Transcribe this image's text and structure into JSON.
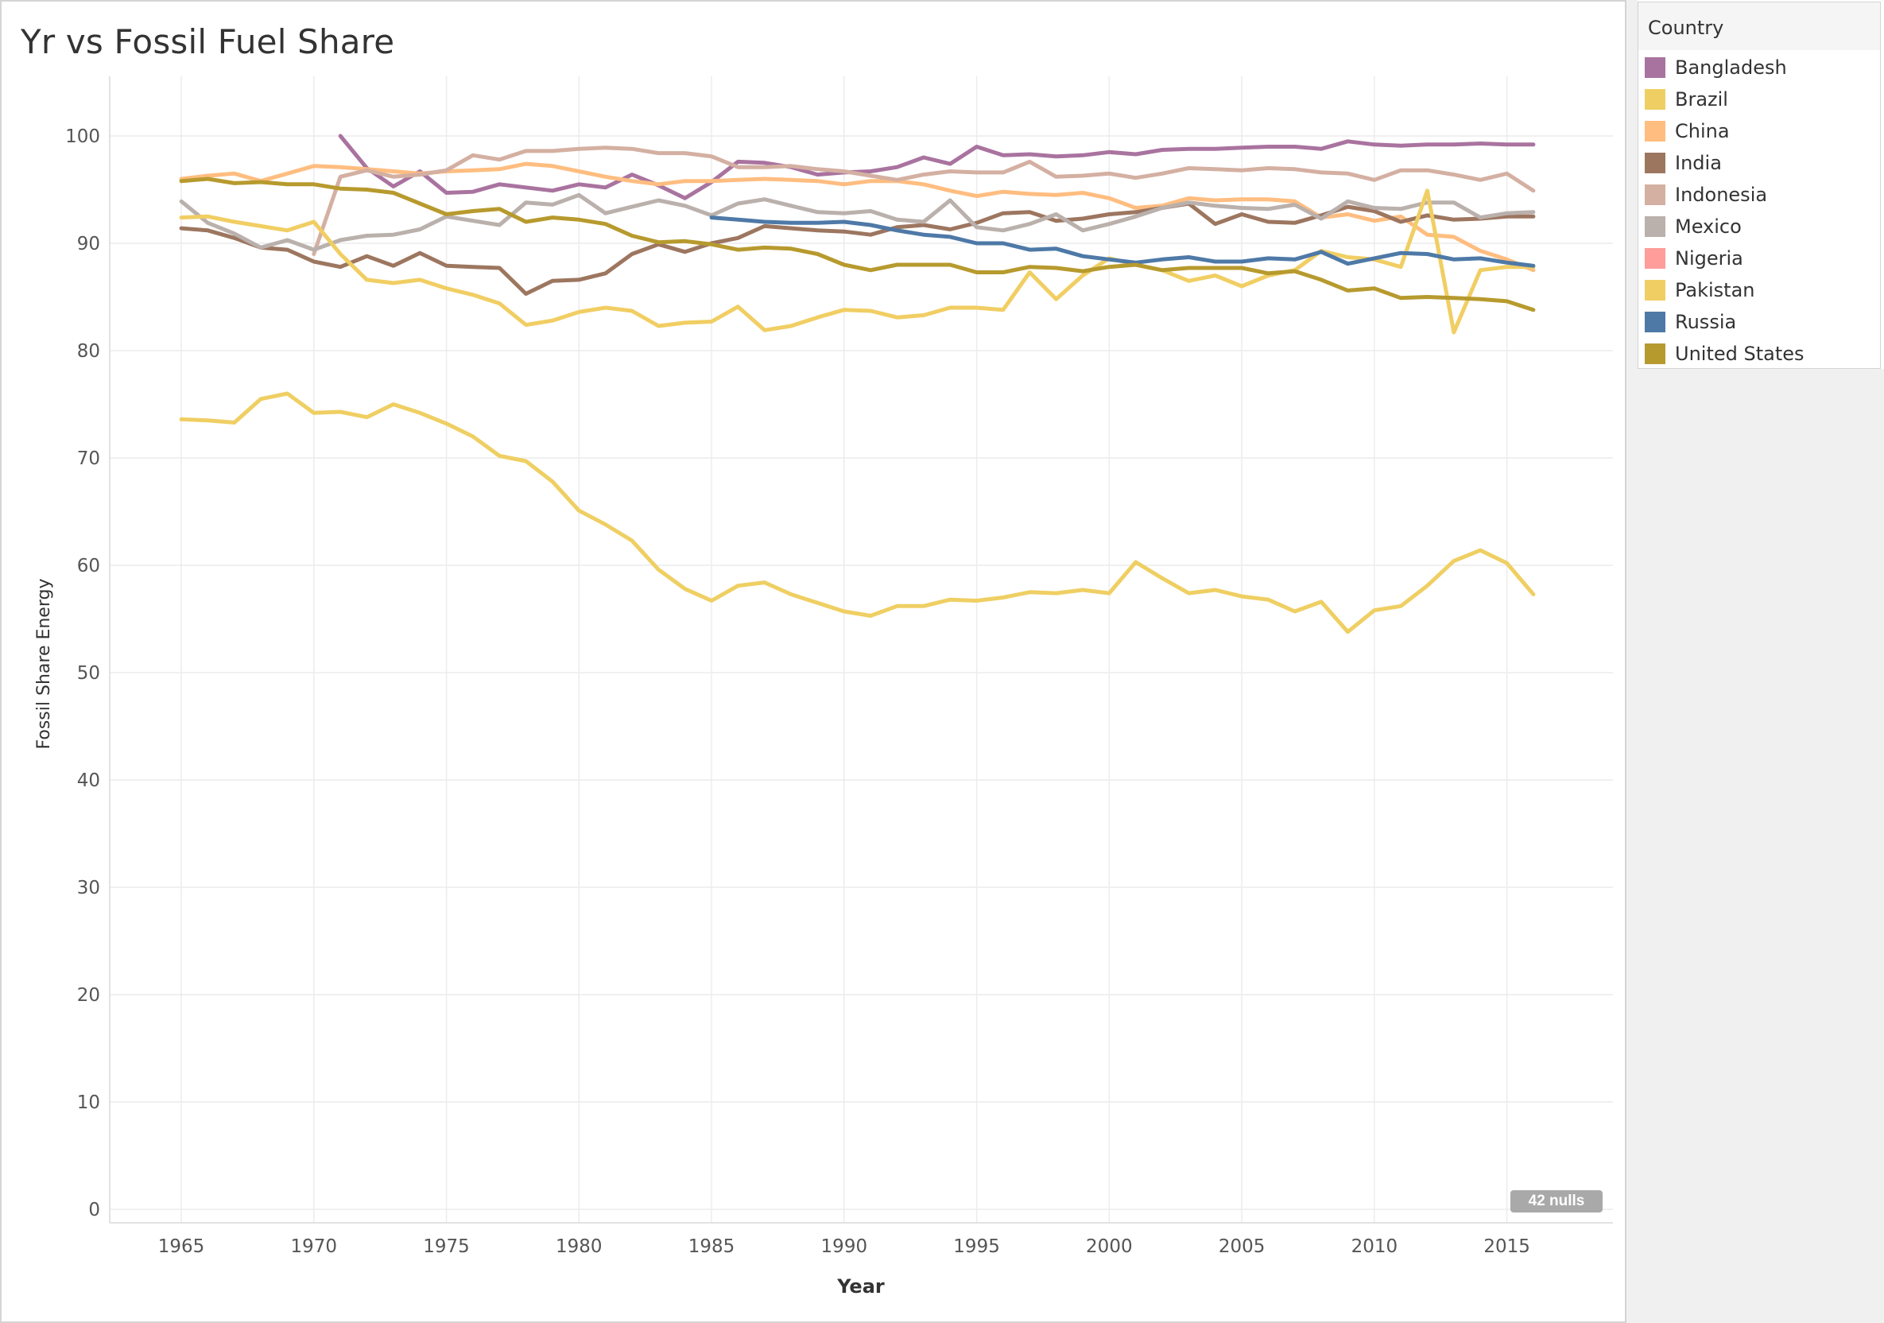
{
  "chart_data": {
    "type": "line",
    "title": "Yr vs Fossil Fuel Share",
    "xlabel": "Year",
    "ylabel": "Fossil Share Energy",
    "xlim": [
      1962,
      1019.0
    ],
    "ylim": [
      0,
      105
    ],
    "x_ticks": [
      "1965",
      "1970",
      "1975",
      "1980",
      "1985",
      "1990",
      "1995",
      "2000",
      "2005",
      "2010",
      "2015"
    ],
    "y_ticks": [
      "0",
      "10",
      "20",
      "30",
      "40",
      "50",
      "60",
      "70",
      "80",
      "90",
      "100"
    ],
    "grid": true,
    "legend_placement": "right",
    "legend_title": "Country",
    "nulls_label": "42 nulls",
    "series": [
      {
        "name": "Bangladesh",
        "color": "#a9739f",
        "start_year": 1971,
        "values": [
          100,
          97,
          95.3,
          96.7,
          94.7,
          94.8,
          95.5,
          95.2,
          94.9,
          95.5,
          95.2,
          96.4,
          95.4,
          94.2,
          95.7,
          97.6,
          97.5,
          97.1,
          96.4,
          96.6,
          96.7,
          97.1,
          98.0,
          97.4,
          99.0,
          98.2,
          98.3,
          98.1,
          98.2,
          98.5,
          98.3,
          98.7,
          98.8,
          98.8,
          98.9,
          99.0,
          99.0,
          98.8,
          99.5,
          99.2,
          99.1,
          99.2,
          99.2,
          99.3,
          99.2,
          99.2
        ]
      },
      {
        "name": "Brazil",
        "color": "#efcf63",
        "start_year": 1965,
        "values": [
          73.6,
          73.5,
          73.3,
          75.5,
          76.0,
          74.2,
          74.3,
          73.8,
          75.0,
          74.2,
          73.2,
          72.0,
          70.2,
          69.7,
          67.8,
          65.1,
          63.8,
          62.3,
          59.6,
          57.8,
          56.7,
          58.1,
          58.4,
          57.3,
          56.5,
          55.7,
          55.3,
          56.2,
          56.2,
          56.8,
          56.7,
          57.0,
          57.5,
          57.4,
          57.7,
          57.4,
          60.3,
          58.8,
          57.4,
          57.7,
          57.1,
          56.8,
          55.7,
          56.6,
          53.8,
          55.8,
          56.2,
          58.1,
          60.4,
          61.4,
          60.2,
          57.3
        ]
      },
      {
        "name": "China",
        "color": "#ffbd80",
        "start_year": 1965,
        "values": [
          96.0,
          96.3,
          96.5,
          95.8,
          96.5,
          97.2,
          97.1,
          96.9,
          96.7,
          96.5,
          96.7,
          96.8,
          96.9,
          97.4,
          97.2,
          96.7,
          96.2,
          95.8,
          95.5,
          95.8,
          95.8,
          95.9,
          96.0,
          95.9,
          95.8,
          95.5,
          95.8,
          95.8,
          95.5,
          94.9,
          94.4,
          94.8,
          94.6,
          94.5,
          94.7,
          94.2,
          93.3,
          93.5,
          94.2,
          94.0,
          94.1,
          94.1,
          93.9,
          92.4,
          92.7,
          92.1,
          92.5,
          90.8,
          90.6,
          89.3,
          88.5,
          87.5
        ]
      },
      {
        "name": "India",
        "color": "#9d7660",
        "start_year": 1965,
        "values": [
          91.4,
          91.2,
          90.5,
          89.6,
          89.4,
          88.3,
          87.8,
          88.8,
          87.9,
          89.1,
          87.9,
          87.8,
          87.7,
          85.3,
          86.5,
          86.6,
          87.2,
          89.0,
          89.9,
          89.2,
          90.0,
          90.5,
          91.6,
          91.4,
          91.2,
          91.1,
          90.8,
          91.5,
          91.7,
          91.3,
          91.9,
          92.8,
          92.9,
          92.1,
          92.3,
          92.7,
          92.9,
          93.3,
          93.7,
          91.8,
          92.7,
          92.0,
          91.9,
          92.6,
          93.4,
          93.0,
          92.0,
          92.6,
          92.2,
          92.3,
          92.5,
          92.5
        ]
      },
      {
        "name": "Indonesia",
        "color": "#d4b0a2",
        "start_year": 1970,
        "values": [
          89.0,
          96.2,
          96.8,
          96.2,
          96.4,
          96.8,
          98.2,
          97.8,
          98.6,
          98.6,
          98.8,
          98.9,
          98.8,
          98.4,
          98.4,
          98.1,
          97.1,
          97.1,
          97.2,
          96.9,
          96.7,
          96.3,
          95.9,
          96.4,
          96.7,
          96.6,
          96.6,
          97.6,
          96.2,
          96.3,
          96.5,
          96.1,
          96.5,
          97.0,
          96.9,
          96.8,
          97.0,
          96.9,
          96.6,
          96.5,
          95.9,
          96.8,
          96.8,
          96.4,
          95.9,
          96.5,
          94.9
        ]
      },
      {
        "name": "Mexico",
        "color": "#bab0ac",
        "start_year": 1965,
        "values": [
          93.9,
          91.9,
          90.9,
          89.6,
          90.3,
          89.4,
          90.3,
          90.7,
          90.8,
          91.3,
          92.5,
          92.1,
          91.7,
          93.8,
          93.6,
          94.5,
          92.8,
          93.4,
          94.0,
          93.5,
          92.6,
          93.7,
          94.1,
          93.5,
          92.9,
          92.8,
          93.0,
          92.2,
          92.0,
          94.0,
          91.5,
          91.2,
          91.8,
          92.7,
          91.2,
          91.8,
          92.5,
          93.3,
          93.8,
          93.5,
          93.3,
          93.2,
          93.6,
          92.3,
          93.9,
          93.3,
          93.2,
          93.8,
          93.8,
          92.4,
          92.8,
          92.9
        ]
      },
      {
        "name": "Nigeria",
        "color": "#ff9d9a",
        "start_year": 1965,
        "values": []
      },
      {
        "name": "Pakistan",
        "color": "#f1ce63",
        "start_year": 1965,
        "values": [
          92.4,
          92.5,
          92.0,
          91.6,
          91.2,
          92.0,
          89.0,
          86.6,
          86.3,
          86.6,
          85.8,
          85.2,
          84.4,
          82.4,
          82.8,
          83.6,
          84.0,
          83.7,
          82.3,
          82.6,
          82.7,
          84.1,
          81.9,
          82.3,
          83.1,
          83.8,
          83.7,
          83.1,
          83.3,
          84.0,
          84.0,
          83.8,
          87.3,
          84.8,
          87.0,
          88.6,
          88.0,
          87.5,
          86.5,
          87.0,
          86.0,
          87.0,
          87.5,
          89.3,
          88.7,
          88.5,
          87.8,
          94.9,
          81.7,
          87.5,
          87.8,
          87.8
        ]
      },
      {
        "name": "Russia",
        "color": "#4e79a7",
        "start_year": 1985,
        "values": [
          92.4,
          92.2,
          92.0,
          91.9,
          91.9,
          92.0,
          91.7,
          91.2,
          90.8,
          90.6,
          90.0,
          90.0,
          89.4,
          89.5,
          88.8,
          88.5,
          88.2,
          88.5,
          88.7,
          88.3,
          88.3,
          88.6,
          88.5,
          89.2,
          88.1,
          88.6,
          89.1,
          89.0,
          88.5,
          88.6,
          88.2,
          87.9
        ]
      },
      {
        "name": "United States",
        "color": "#b79a2e",
        "start_year": 1965,
        "values": [
          95.8,
          96.0,
          95.6,
          95.7,
          95.5,
          95.5,
          95.1,
          95.0,
          94.7,
          93.7,
          92.7,
          93.0,
          93.2,
          92.0,
          92.4,
          92.2,
          91.8,
          90.7,
          90.1,
          90.2,
          89.9,
          89.4,
          89.6,
          89.5,
          89.0,
          88.0,
          87.5,
          88.0,
          88.0,
          88.0,
          87.3,
          87.3,
          87.8,
          87.7,
          87.4,
          87.8,
          88.0,
          87.5,
          87.7,
          87.7,
          87.7,
          87.2,
          87.4,
          86.6,
          85.6,
          85.8,
          84.9,
          85.0,
          84.9,
          84.8,
          84.6,
          83.8
        ]
      }
    ]
  }
}
